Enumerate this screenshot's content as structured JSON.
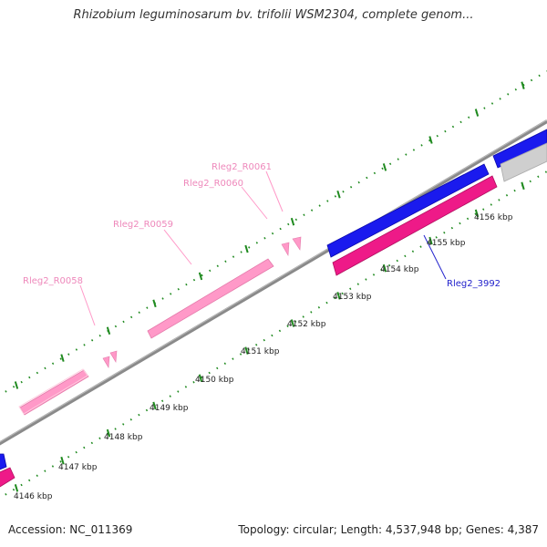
{
  "title": "Rhizobium leguminosarum bv. trifolii WSM2304, complete genom...",
  "footer": {
    "accession": "Accession: NC_011369",
    "summary": "Topology: circular; Length: 4,537,948 bp; Genes: 4,387"
  },
  "colors": {
    "background": "#ffffff",
    "backbone": "#8a8a8a",
    "tick": "#1f8a1f",
    "cds": "#1a1aee",
    "gene": "#ee1a88",
    "rna": "#ff99c8",
    "rna_label": "#ee88bb",
    "cds_label": "#2222cc",
    "other": "#cfcfcf"
  },
  "scale_labels": [
    "4146 kbp",
    "4147 kbp",
    "4148 kbp",
    "4149 kbp",
    "4150 kbp",
    "4151 kbp",
    "4152 kbp",
    "4153 kbp",
    "4154 kbp",
    "4155 kbp",
    "4156 kbp"
  ],
  "feature_labels": [
    {
      "text": "Rleg2_R0058",
      "kind": "rna"
    },
    {
      "text": "Rleg2_R0059",
      "kind": "rna"
    },
    {
      "text": "Rleg2_R0060",
      "kind": "rna"
    },
    {
      "text": "Rleg2_R0061",
      "kind": "rna"
    },
    {
      "text": "Rleg2_3992",
      "kind": "cds"
    }
  ]
}
